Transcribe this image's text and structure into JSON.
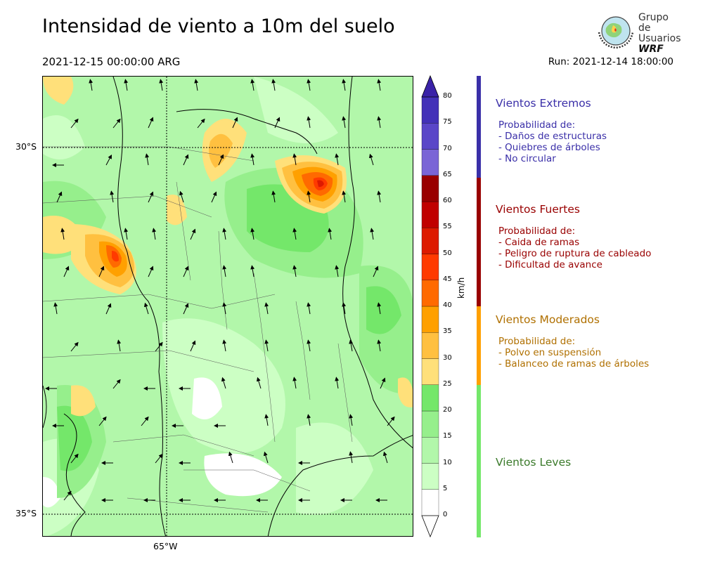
{
  "header": {
    "title": "Intensidad de viento a 10m del suelo",
    "valid_time": "2021-12-15 00:00:00 ARG",
    "run_time": "Run: 2021-12-14 18:00:00"
  },
  "logo": {
    "line1": "Grupo de",
    "line2": "Usuarios",
    "line3": "WRF"
  },
  "map": {
    "lat_labels": [
      "30°S",
      "35°S"
    ],
    "lon_labels": [
      "65°W"
    ],
    "colors": {
      "c0": "#ffffff",
      "c5": "#ccffc4",
      "c10": "#b2f7aa",
      "c15": "#96ef8c",
      "c20": "#74e76a",
      "c25": "#ffe07a",
      "c30": "#ffc040",
      "c35": "#ffa000",
      "c40": "#ff6a00",
      "c45": "#ff3a00",
      "c50": "#dd1a00",
      "c55": "#c00000",
      "c60": "#990000",
      "c65": "#7a65d6",
      "c70": "#5a46c8",
      "c75": "#4331b8",
      "c80": "#3a22a8"
    }
  },
  "colorbar": {
    "unit": "km/h",
    "ticks": [
      "0",
      "5",
      "10",
      "15",
      "20",
      "25",
      "30",
      "35",
      "40",
      "45",
      "50",
      "55",
      "60",
      "65",
      "70",
      "75",
      "80"
    ]
  },
  "categories": [
    {
      "title": "Vientos Extremos",
      "color": "#3a2fa8",
      "desc": [
        "Probabilidad de:",
        "- Daños de estructuras",
        "- Quiebres de árboles",
        "- No circular"
      ]
    },
    {
      "title": "Vientos Fuertes",
      "color": "#990000",
      "desc": [
        "Probabilidad de:",
        "- Caida de ramas",
        "- Peligro de ruptura de cableado",
        "- Dificultad de avance"
      ]
    },
    {
      "title": "Vientos Moderados",
      "color": "#b07000",
      "bar_color": "#ffa000",
      "desc": [
        "Probabilidad de:",
        "- Polvo en suspensión",
        "- Balanceo de ramas de árboles"
      ]
    },
    {
      "title": "Vientos Leves",
      "color": "#3a7a2a",
      "bar_color": "#74e76a",
      "desc": []
    }
  ]
}
